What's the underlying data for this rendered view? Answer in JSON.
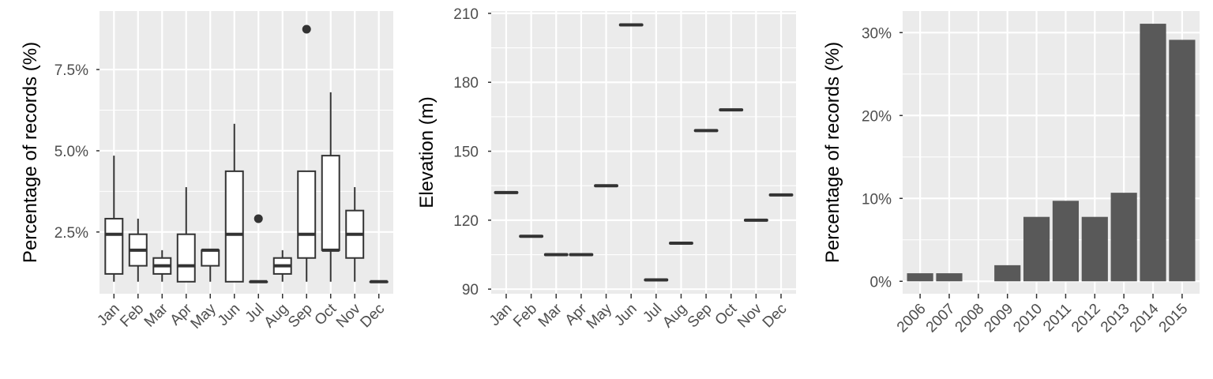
{
  "colors": {
    "panel_bg": "#ebebeb",
    "grid_major": "#ffffff",
    "box_fill": "#ffffff",
    "box_line": "#333333",
    "bar_fill": "#595959",
    "tick_text": "#4d4d4d"
  },
  "chart_data": [
    {
      "type": "boxplot",
      "xlabel": "",
      "ylabel": "Percentage of records (%)",
      "categories": [
        "Jan",
        "Feb",
        "Mar",
        "Apr",
        "May",
        "Jun",
        "Jul",
        "Aug",
        "Sep",
        "Oct",
        "Nov",
        "Dec"
      ],
      "ylim": [
        0.6,
        9.3
      ],
      "yticks": [
        2.5,
        5.0,
        7.5
      ],
      "ytick_labels": [
        "2.5%",
        "5.0%",
        "7.5%"
      ],
      "grid": true,
      "boxes": [
        {
          "min": 0.97,
          "q1": 1.21,
          "median": 2.43,
          "q3": 2.91,
          "max": 4.85,
          "outliers": []
        },
        {
          "min": 0.97,
          "q1": 1.46,
          "median": 1.94,
          "q3": 2.43,
          "max": 2.91,
          "outliers": []
        },
        {
          "min": 0.97,
          "q1": 1.21,
          "median": 1.46,
          "q3": 1.7,
          "max": 1.94,
          "outliers": []
        },
        {
          "min": 0.97,
          "q1": 0.97,
          "median": 1.46,
          "q3": 2.43,
          "max": 3.88,
          "outliers": []
        },
        {
          "min": 0.97,
          "q1": 1.46,
          "median": 1.94,
          "q3": 1.94,
          "max": 1.94,
          "outliers": []
        },
        {
          "min": 0.97,
          "q1": 0.97,
          "median": 2.43,
          "q3": 4.37,
          "max": 5.83,
          "outliers": []
        },
        {
          "min": 0.97,
          "q1": 0.97,
          "median": 0.97,
          "q3": 0.97,
          "max": 0.97,
          "outliers": [
            2.91
          ]
        },
        {
          "min": 0.97,
          "q1": 1.21,
          "median": 1.46,
          "q3": 1.7,
          "max": 1.94,
          "outliers": []
        },
        {
          "min": 0.97,
          "q1": 1.7,
          "median": 2.43,
          "q3": 4.37,
          "max": 4.37,
          "outliers": [
            8.74
          ]
        },
        {
          "min": 0.97,
          "q1": 1.94,
          "median": 1.94,
          "q3": 4.85,
          "max": 6.8,
          "outliers": []
        },
        {
          "min": 0.97,
          "q1": 1.7,
          "median": 2.43,
          "q3": 3.16,
          "max": 3.88,
          "outliers": []
        },
        {
          "min": 0.97,
          "q1": 0.97,
          "median": 0.97,
          "q3": 0.97,
          "max": 0.97,
          "outliers": []
        }
      ]
    },
    {
      "type": "boxplot",
      "xlabel": "",
      "ylabel": "Elevation (m)",
      "categories": [
        "Jan",
        "Feb",
        "Mar",
        "Apr",
        "May",
        "Jun",
        "Jul",
        "Aug",
        "Sep",
        "Oct",
        "Nov",
        "Dec"
      ],
      "ylim": [
        88,
        211
      ],
      "yticks": [
        90,
        120,
        150,
        180,
        210
      ],
      "ytick_labels": [
        "90",
        "120",
        "150",
        "180",
        "210"
      ],
      "grid": true,
      "values": [
        132,
        113,
        105,
        105,
        135,
        205,
        94,
        110,
        159,
        168,
        120,
        131
      ]
    },
    {
      "type": "bar",
      "xlabel": "",
      "ylabel": "Percentage of records (%)",
      "categories": [
        "2006",
        "2007",
        "2008",
        "2009",
        "2010",
        "2011",
        "2012",
        "2013",
        "2014",
        "2015"
      ],
      "values": [
        0.97,
        0.97,
        0,
        1.94,
        7.77,
        9.71,
        7.77,
        10.68,
        31.07,
        29.13
      ],
      "ylim": [
        -1.5,
        32.6
      ],
      "yticks": [
        0,
        10,
        20,
        30
      ],
      "ytick_labels": [
        "0%",
        "10%",
        "20%",
        "30%"
      ],
      "grid": true
    }
  ]
}
